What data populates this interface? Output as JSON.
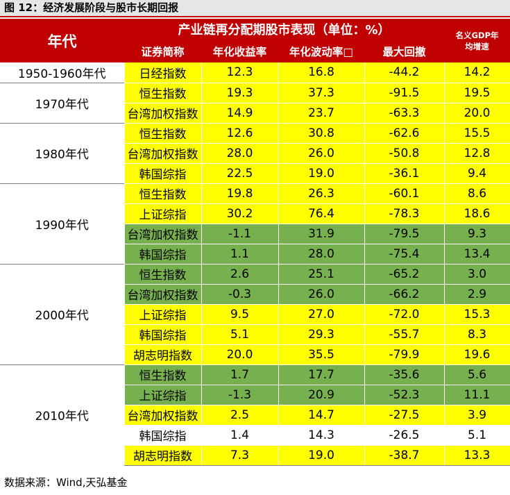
{
  "title": "图 12：经济发展阶段与股市长期回报",
  "header": {
    "era": "年代",
    "group": "产业链再分配期股市表现（单位：%）",
    "gdp_line1": "名义GDP年",
    "gdp_line2": "均增速",
    "columns": [
      "证券简称",
      "年化收益率",
      "年化波动率□",
      "最大回撤"
    ]
  },
  "eras": [
    {
      "label": "1950-1960年代",
      "rows": [
        {
          "name": "日经指数",
          "ret": "12.3",
          "vol": "16.8",
          "dd": "-44.2",
          "gdp": "14.2",
          "color": "y"
        }
      ]
    },
    {
      "label": "1970年代",
      "rows": [
        {
          "name": "恒生指数",
          "ret": "19.3",
          "vol": "37.3",
          "dd": "-91.5",
          "gdp": "19.5",
          "color": "y"
        },
        {
          "name": "台湾加权指数",
          "ret": "14.9",
          "vol": "23.7",
          "dd": "-63.3",
          "gdp": "20.0",
          "color": "y",
          "small": true
        }
      ]
    },
    {
      "label": "1980年代",
      "rows": [
        {
          "name": "恒生指数",
          "ret": "12.6",
          "vol": "30.8",
          "dd": "-62.6",
          "gdp": "15.5",
          "color": "y"
        },
        {
          "name": "台湾加权指数",
          "ret": "28.0",
          "vol": "26.0",
          "dd": "-50.8",
          "gdp": "12.8",
          "color": "y",
          "small": true
        },
        {
          "name": "韩国综指",
          "ret": "22.5",
          "vol": "19.0",
          "dd": "-36.1",
          "gdp": "9.4",
          "color": "y"
        }
      ]
    },
    {
      "label": "1990年代",
      "rows": [
        {
          "name": "恒生指数",
          "ret": "19.8",
          "vol": "26.3",
          "dd": "-60.1",
          "gdp": "8.6",
          "color": "y"
        },
        {
          "name": "上证综指",
          "ret": "30.2",
          "vol": "76.4",
          "dd": "-78.3",
          "gdp": "18.6",
          "color": "y"
        },
        {
          "name": "台湾加权指数",
          "ret": "-1.1",
          "vol": "31.9",
          "dd": "-79.5",
          "gdp": "9.3",
          "color": "g",
          "small": true
        },
        {
          "name": "韩国综指",
          "ret": "1.1",
          "vol": "28.0",
          "dd": "-75.4",
          "gdp": "13.4",
          "color": "g"
        }
      ]
    },
    {
      "label": "2000年代",
      "rows": [
        {
          "name": "恒生指数",
          "ret": "2.6",
          "vol": "25.1",
          "dd": "-65.2",
          "gdp": "3.0",
          "color": "g"
        },
        {
          "name": "台湾加权指数",
          "ret": "-0.3",
          "vol": "26.0",
          "dd": "-66.2",
          "gdp": "2.9",
          "color": "g",
          "small": true
        },
        {
          "name": "上证综指",
          "ret": "9.5",
          "vol": "27.0",
          "dd": "-72.0",
          "gdp": "15.3",
          "color": "y"
        },
        {
          "name": "韩国综指",
          "ret": "5.1",
          "vol": "29.3",
          "dd": "-55.7",
          "gdp": "8.3",
          "color": "y"
        },
        {
          "name": "胡志明指数",
          "ret": "20.0",
          "vol": "35.5",
          "dd": "-79.9",
          "gdp": "19.6",
          "color": "y"
        }
      ]
    },
    {
      "label": "2010年代",
      "rows": [
        {
          "name": "恒生指数",
          "ret": "1.7",
          "vol": "17.7",
          "dd": "-35.6",
          "gdp": "5.6",
          "color": "g"
        },
        {
          "name": "上证综指",
          "ret": "-1.3",
          "vol": "20.9",
          "dd": "-52.3",
          "gdp": "11.1",
          "color": "g"
        },
        {
          "name": "台湾加权指数",
          "ret": "2.5",
          "vol": "14.7",
          "dd": "-27.5",
          "gdp": "3.9",
          "color": "y",
          "small": true
        },
        {
          "name": "韩国综指",
          "ret": "1.4",
          "vol": "14.3",
          "dd": "-26.5",
          "gdp": "5.1",
          "color": "w"
        },
        {
          "name": "胡志明指数",
          "ret": "7.3",
          "vol": "19.0",
          "dd": "-38.7",
          "gdp": "13.3",
          "color": "y",
          "small": true
        }
      ]
    }
  ],
  "source": "数据来源：Wind,天弘基金"
}
